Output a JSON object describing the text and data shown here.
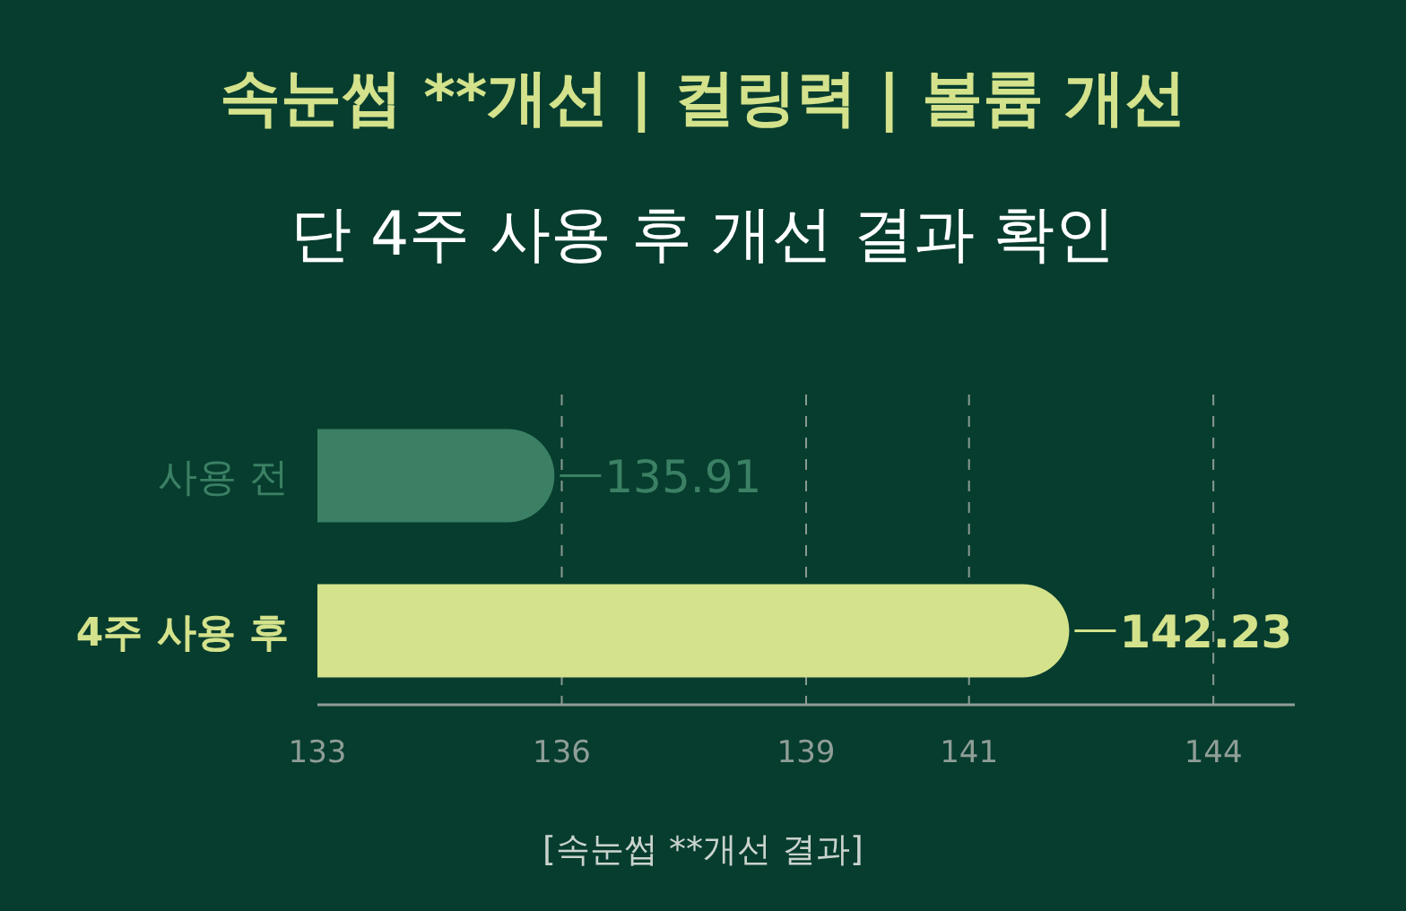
{
  "chart_data": {
    "type": "bar",
    "orientation": "horizontal",
    "title": "속눈썹 **개선 | 컬링력 | 볼륨 개선",
    "subtitle": "단 4주 사용 후 개선 결과 확인",
    "categories": [
      "사용 전",
      "4주 사용 후"
    ],
    "values": [
      135.91,
      142.23
    ],
    "colors": [
      "#3b8064",
      "#d4e28c"
    ],
    "xlim": [
      133,
      145
    ],
    "xticks": [
      133,
      136,
      139,
      141,
      144
    ],
    "grid": "x",
    "data_labels": true,
    "annotations": [
      "[속눈썹 **개선 결과]"
    ]
  }
}
